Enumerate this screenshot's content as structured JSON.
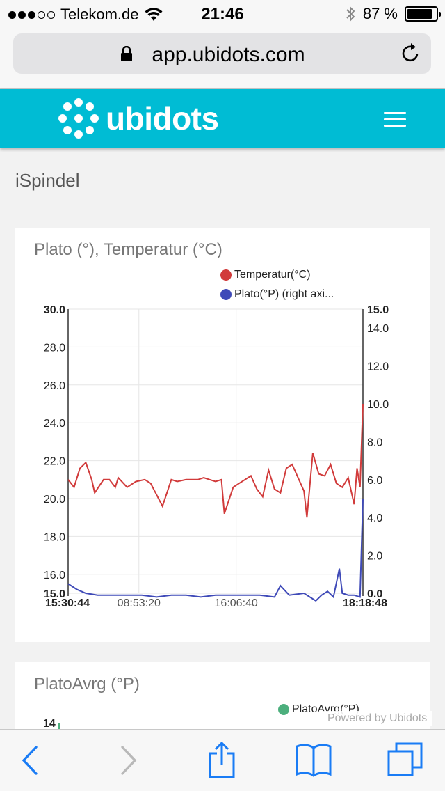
{
  "status_bar": {
    "carrier": "Telekom.de",
    "time": "21:46",
    "battery": "87 %",
    "battery_level": 0.87
  },
  "browser": {
    "url": "app.ubidots.com"
  },
  "header": {
    "brand": "ubidots"
  },
  "page": {
    "title": "iSpindel"
  },
  "widgets": [
    {
      "title": "Plato (°), Temperatur (°C)",
      "legend": [
        "Temperatur(°C)",
        "Plato(°P) (right axi..."
      ],
      "left_ticks": [
        "30.0",
        "28.0",
        "26.0",
        "24.0",
        "22.0",
        "20.0",
        "18.0",
        "16.0",
        "15.0"
      ],
      "right_ticks": [
        "15.0",
        "14.0",
        "12.0",
        "10.0",
        "8.0",
        "6.0",
        "4.0",
        "2.0",
        "0.0"
      ],
      "x_ticks": [
        "15:30:44",
        "08:53:20",
        "16:06:40",
        "18:18:48"
      ]
    },
    {
      "title": "PlatoAvrg (°P)",
      "legend": [
        "PlatoAvrg(°P)"
      ],
      "left_ticks": [
        "14"
      ]
    }
  ],
  "powered_by": "Powered by Ubidots",
  "colors": {
    "header": "#00bcd4",
    "temperature": "#d13b3b",
    "plato": "#3f4ab8",
    "plato_avrg": "#4caf7d",
    "ios_blue": "#1a7cf5"
  },
  "chart_data": [
    {
      "type": "line",
      "title": "Plato (°), Temperatur (°C)",
      "y_left_lim": [
        15,
        30
      ],
      "y_right_lim": [
        0,
        15
      ],
      "x_ticks": [
        "15:30:44",
        "08:53:20",
        "16:06:40",
        "18:18:48"
      ],
      "series": [
        {
          "name": "Temperatur(°C)",
          "axis": "left",
          "color": "#d13b3b",
          "x": [
            0,
            2,
            4,
            6,
            8,
            9,
            12,
            14,
            16,
            17,
            20,
            23,
            26,
            28,
            30,
            32,
            35,
            37,
            40,
            42,
            44,
            46,
            48,
            50,
            52,
            53,
            56,
            58,
            60,
            62,
            64,
            66,
            68,
            70,
            72,
            74,
            76,
            78,
            80,
            81,
            83,
            85,
            87,
            89,
            91,
            93,
            95,
            97,
            98,
            99,
            100
          ],
          "y": [
            21.0,
            20.6,
            21.6,
            21.9,
            21.0,
            20.3,
            21.0,
            21.0,
            20.6,
            21.1,
            20.6,
            20.9,
            21.0,
            20.8,
            20.2,
            19.6,
            21.0,
            20.9,
            21.0,
            21.0,
            21.0,
            21.1,
            21.0,
            20.9,
            21.0,
            19.2,
            20.6,
            20.8,
            21.0,
            21.2,
            20.5,
            20.1,
            21.5,
            20.5,
            20.3,
            21.6,
            21.8,
            21.1,
            20.4,
            19.0,
            22.4,
            21.3,
            21.2,
            21.8,
            20.8,
            20.6,
            21.1,
            19.7,
            21.6,
            20.6,
            25.0
          ]
        },
        {
          "name": "Plato(°P) (right axi...",
          "axis": "right",
          "color": "#3f4ab8",
          "x": [
            0,
            3,
            6,
            10,
            15,
            20,
            25,
            30,
            35,
            40,
            45,
            50,
            55,
            60,
            65,
            70,
            72,
            75,
            80,
            84,
            86,
            88,
            90,
            92,
            93,
            95,
            97,
            99,
            100
          ],
          "y": [
            0.5,
            0.2,
            0.0,
            -0.1,
            -0.1,
            -0.1,
            -0.1,
            -0.2,
            -0.1,
            -0.1,
            -0.2,
            -0.1,
            -0.1,
            -0.1,
            -0.1,
            -0.2,
            0.4,
            -0.1,
            0.0,
            -0.4,
            -0.1,
            0.1,
            -0.2,
            1.3,
            0.0,
            -0.1,
            -0.1,
            -0.2,
            5.0
          ]
        }
      ]
    }
  ]
}
